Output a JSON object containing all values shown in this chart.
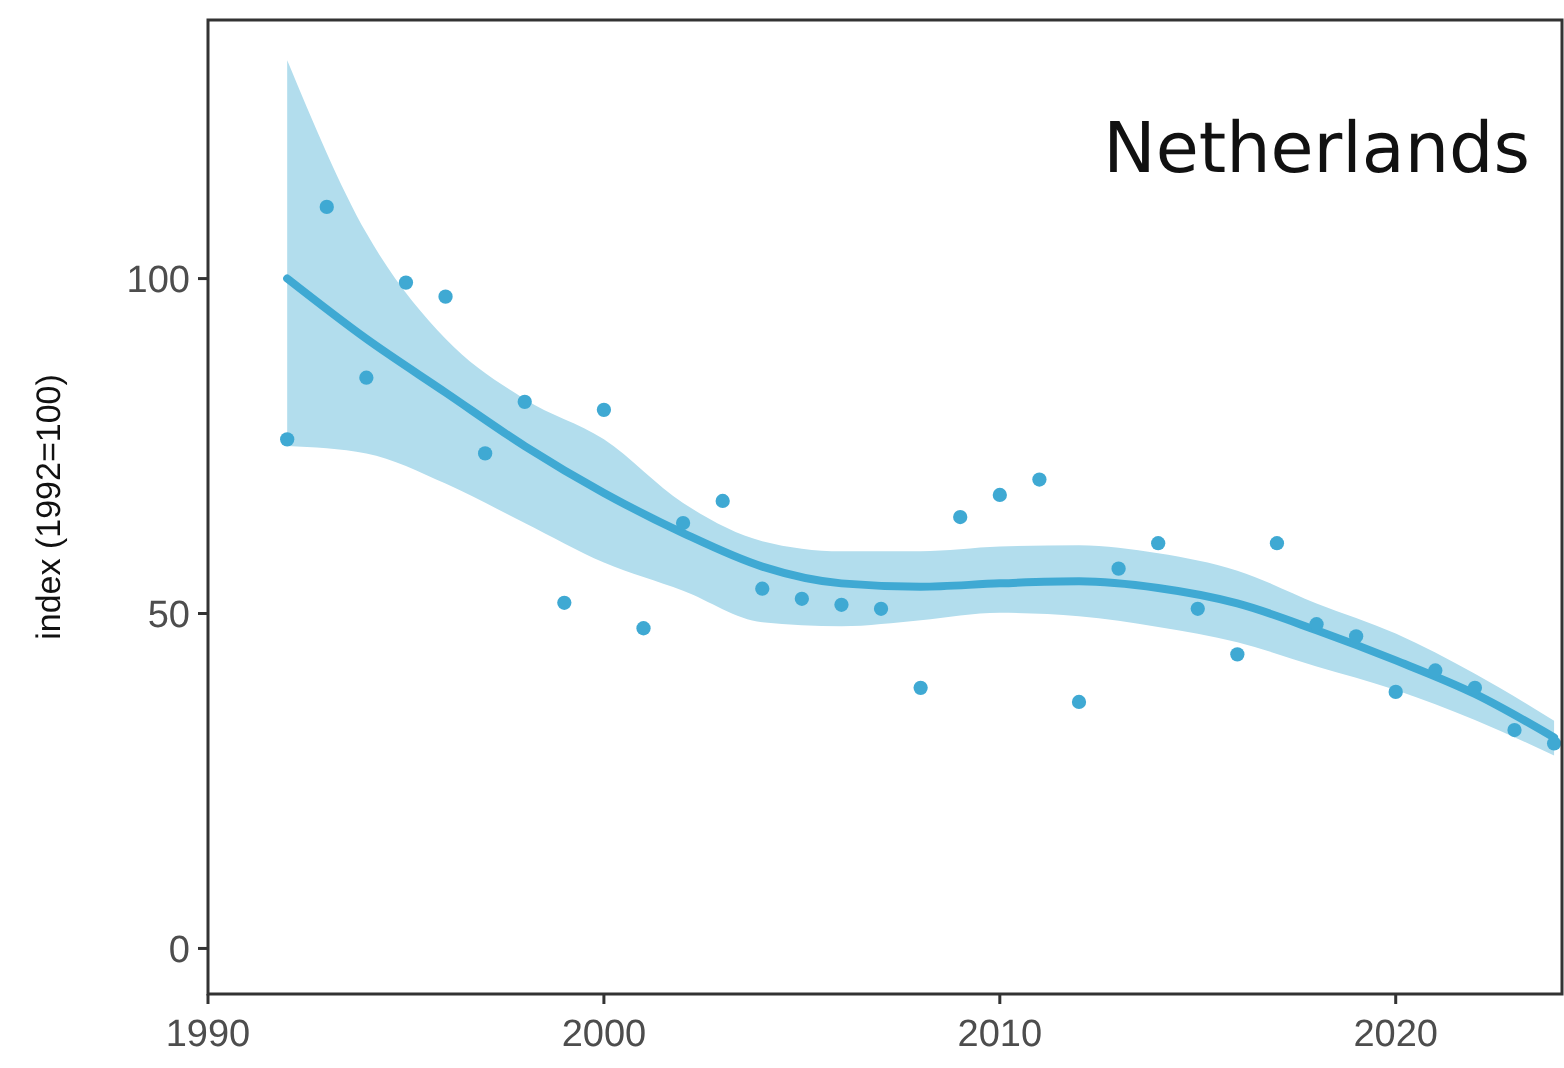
{
  "chart_data": {
    "type": "scatter",
    "title": "Netherlands",
    "ylabel": "index (1992=100)",
    "xlim": [
      1990,
      2024.2
    ],
    "ylim": [
      -6.8,
      138.6
    ],
    "xticks": [
      1990,
      2000,
      2010,
      2020
    ],
    "yticks": [
      0,
      50,
      100
    ],
    "grid": false,
    "series": [
      {
        "color": "#3fa9d3",
        "marker": "circle",
        "x": [
          1992,
          1993,
          1994,
          1995,
          1996,
          1997,
          1998,
          1999,
          2000,
          2001,
          2002,
          2003,
          2004,
          2005,
          2006,
          2007,
          2008,
          2009,
          2010,
          2011,
          2012,
          2013,
          2014,
          2015,
          2016,
          2017,
          2018,
          2019,
          2020,
          2021,
          2022,
          2023,
          2024
        ],
        "values": [
          76,
          110.7,
          85.2,
          99.4,
          97.3,
          73.9,
          81.6,
          51.6,
          80.4,
          47.8,
          63.5,
          66.8,
          53.7,
          52.2,
          51.3,
          50.7,
          38.9,
          64.4,
          67.7,
          70,
          36.8,
          56.7,
          60.5,
          50.7,
          43.9,
          60.5,
          48.4,
          46.6,
          38.3,
          41.5,
          38.9,
          32.6,
          30.6
        ]
      },
      {
        "type": "line",
        "color": "#3fa9d3",
        "marker": "none",
        "line_style": "solid",
        "x": [
          1992,
          1994,
          1996,
          1998,
          2000,
          2002,
          2004,
          2006,
          2008,
          2010,
          2012,
          2014,
          2016,
          2018,
          2020,
          2022,
          2024
        ],
        "values": [
          100,
          91,
          83,
          75,
          68,
          62,
          57,
          54.5,
          54,
          54.5,
          54.8,
          53.8,
          51.5,
          47.5,
          43,
          38,
          31.5
        ],
        "lower": [
          75,
          73.9,
          69.4,
          63.5,
          57.6,
          53.4,
          48.7,
          48.1,
          49,
          50.1,
          49.6,
          48,
          45.7,
          42.1,
          38.6,
          34.1,
          28.8
        ],
        "upper": [
          132.6,
          106.8,
          91,
          82,
          76,
          66.5,
          60.8,
          59.3,
          59.3,
          60,
          60.2,
          59,
          56.4,
          51.5,
          47,
          41,
          34
        ]
      }
    ]
  }
}
